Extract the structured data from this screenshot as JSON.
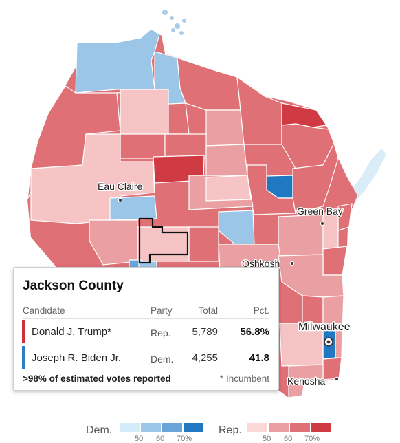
{
  "map": {
    "cities": [
      {
        "name": "Eau Claire"
      },
      {
        "name": "Green Bay"
      },
      {
        "name": "Oshkosh"
      },
      {
        "name": "Milwaukee"
      },
      {
        "name": "Kenosha"
      }
    ],
    "colors": {
      "water": "#d9ecf7",
      "county_border": "#ffffff",
      "selected_outline": "#111111",
      "rep_scale": [
        "#f6c4c4",
        "#eaa0a3",
        "#df7075",
        "#cf3a43"
      ],
      "dem_scale": [
        "#cde4f6",
        "#9cc6e8",
        "#6aa5da",
        "#1f78c1"
      ]
    }
  },
  "tooltip": {
    "county": "Jackson County",
    "headers": {
      "candidate": "Candidate",
      "party": "Party",
      "total": "Total",
      "pct": "Pct."
    },
    "rows": [
      {
        "name": "Donald J. Trump*",
        "party": "Rep.",
        "total": "5,789",
        "pct": "56.8%",
        "color": "#d0303c"
      },
      {
        "name": "Joseph R. Biden Jr.",
        "party": "Dem.",
        "total": "4,255",
        "pct": "41.8",
        "color": "#2e7ec4"
      }
    ],
    "footnote": ">98% of estimated votes reported",
    "incumbent_note": "* Incumbent"
  },
  "legend": {
    "dem_label": "Dem.",
    "rep_label": "Rep.",
    "ticks": [
      "50",
      "60",
      "70%"
    ],
    "dem_colors": [
      "#d4ebfb",
      "#9cc6e8",
      "#6aa5da",
      "#1f78c1"
    ],
    "rep_colors": [
      "#fbd9d9",
      "#eaa0a3",
      "#df7075",
      "#cf3a43"
    ]
  }
}
